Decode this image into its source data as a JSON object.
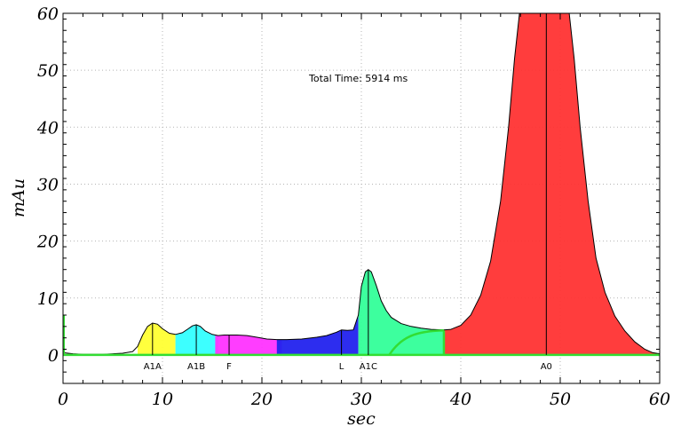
{
  "chart_data": {
    "type": "area",
    "xlabel": "sec",
    "ylabel": "mAu",
    "xlim": [
      0,
      60
    ],
    "ylim": [
      -5,
      60
    ],
    "x_ticks": [
      0,
      10,
      20,
      30,
      40,
      50,
      60
    ],
    "y_ticks": [
      0,
      10,
      20,
      30,
      40,
      50,
      60
    ],
    "grid": true,
    "annotation": "Total Time: 5914 ms",
    "trace_color": "#000000",
    "baseline_color": "#33dd33",
    "peaks": [
      {
        "label": "A1A",
        "retention": 9.0,
        "height": 5.6,
        "start": 7.5,
        "end": 11.3,
        "color": "#ffff33"
      },
      {
        "label": "A1B",
        "retention": 13.4,
        "height": 5.3,
        "start": 11.3,
        "end": 15.6,
        "color": "#33ffff"
      },
      {
        "label": "F",
        "retention": 16.7,
        "height": 3.5,
        "start": 15.3,
        "end": 22.0,
        "color": "#ff33ff"
      },
      {
        "label": "L",
        "retention": 28.0,
        "height": 4.4,
        "start": 21.5,
        "end": 29.7,
        "color": "#2222ee"
      },
      {
        "label": "A1C",
        "retention": 30.7,
        "height": 15.0,
        "start": 29.7,
        "end": 38.3,
        "color": "#33ff99"
      },
      {
        "label": "A0",
        "retention": 48.6,
        "height": 60,
        "start": 38.3,
        "end": 60,
        "color": "#ff3333"
      }
    ],
    "trace": [
      [
        0,
        0.4
      ],
      [
        1,
        0.2
      ],
      [
        2,
        0.1
      ],
      [
        4,
        0.1
      ],
      [
        6,
        0.3
      ],
      [
        7,
        0.6
      ],
      [
        7.5,
        1.5
      ],
      [
        8,
        3.5
      ],
      [
        8.5,
        5.0
      ],
      [
        9.0,
        5.6
      ],
      [
        9.5,
        5.4
      ],
      [
        10.0,
        4.6
      ],
      [
        10.7,
        3.8
      ],
      [
        11.3,
        3.6
      ],
      [
        12.0,
        3.9
      ],
      [
        12.6,
        4.6
      ],
      [
        13.0,
        5.1
      ],
      [
        13.4,
        5.3
      ],
      [
        13.8,
        5.0
      ],
      [
        14.3,
        4.2
      ],
      [
        15.0,
        3.6
      ],
      [
        15.6,
        3.4
      ],
      [
        16.2,
        3.5
      ],
      [
        16.7,
        3.5
      ],
      [
        17.5,
        3.5
      ],
      [
        18.5,
        3.4
      ],
      [
        19.5,
        3.1
      ],
      [
        20.5,
        2.8
      ],
      [
        21.5,
        2.7
      ],
      [
        22.5,
        2.7
      ],
      [
        24,
        2.8
      ],
      [
        25.5,
        3.1
      ],
      [
        26.5,
        3.4
      ],
      [
        27.5,
        4.0
      ],
      [
        28.0,
        4.4
      ],
      [
        28.6,
        4.3
      ],
      [
        29.2,
        4.4
      ],
      [
        29.7,
        7.0
      ],
      [
        30.0,
        12.0
      ],
      [
        30.4,
        14.6
      ],
      [
        30.7,
        15.0
      ],
      [
        31.0,
        14.6
      ],
      [
        31.5,
        12.2
      ],
      [
        32.0,
        9.5
      ],
      [
        32.5,
        7.8
      ],
      [
        33.0,
        6.6
      ],
      [
        34.0,
        5.5
      ],
      [
        35.0,
        5.0
      ],
      [
        36.0,
        4.7
      ],
      [
        37.0,
        4.5
      ],
      [
        38.3,
        4.4
      ],
      [
        39.0,
        4.5
      ],
      [
        40.0,
        5.2
      ],
      [
        41.0,
        7.0
      ],
      [
        42.0,
        10.5
      ],
      [
        43.0,
        16.5
      ],
      [
        44.0,
        27.0
      ],
      [
        44.8,
        40.0
      ],
      [
        45.4,
        52.0
      ],
      [
        45.9,
        60.0
      ],
      [
        50.9,
        60.0
      ],
      [
        51.4,
        52.0
      ],
      [
        52.0,
        40.0
      ],
      [
        52.8,
        27.0
      ],
      [
        53.6,
        17.0
      ],
      [
        54.5,
        11.0
      ],
      [
        55.5,
        6.8
      ],
      [
        56.5,
        4.2
      ],
      [
        57.5,
        2.3
      ],
      [
        58.5,
        1.0
      ],
      [
        59.3,
        0.4
      ],
      [
        60.0,
        0.2
      ]
    ]
  }
}
